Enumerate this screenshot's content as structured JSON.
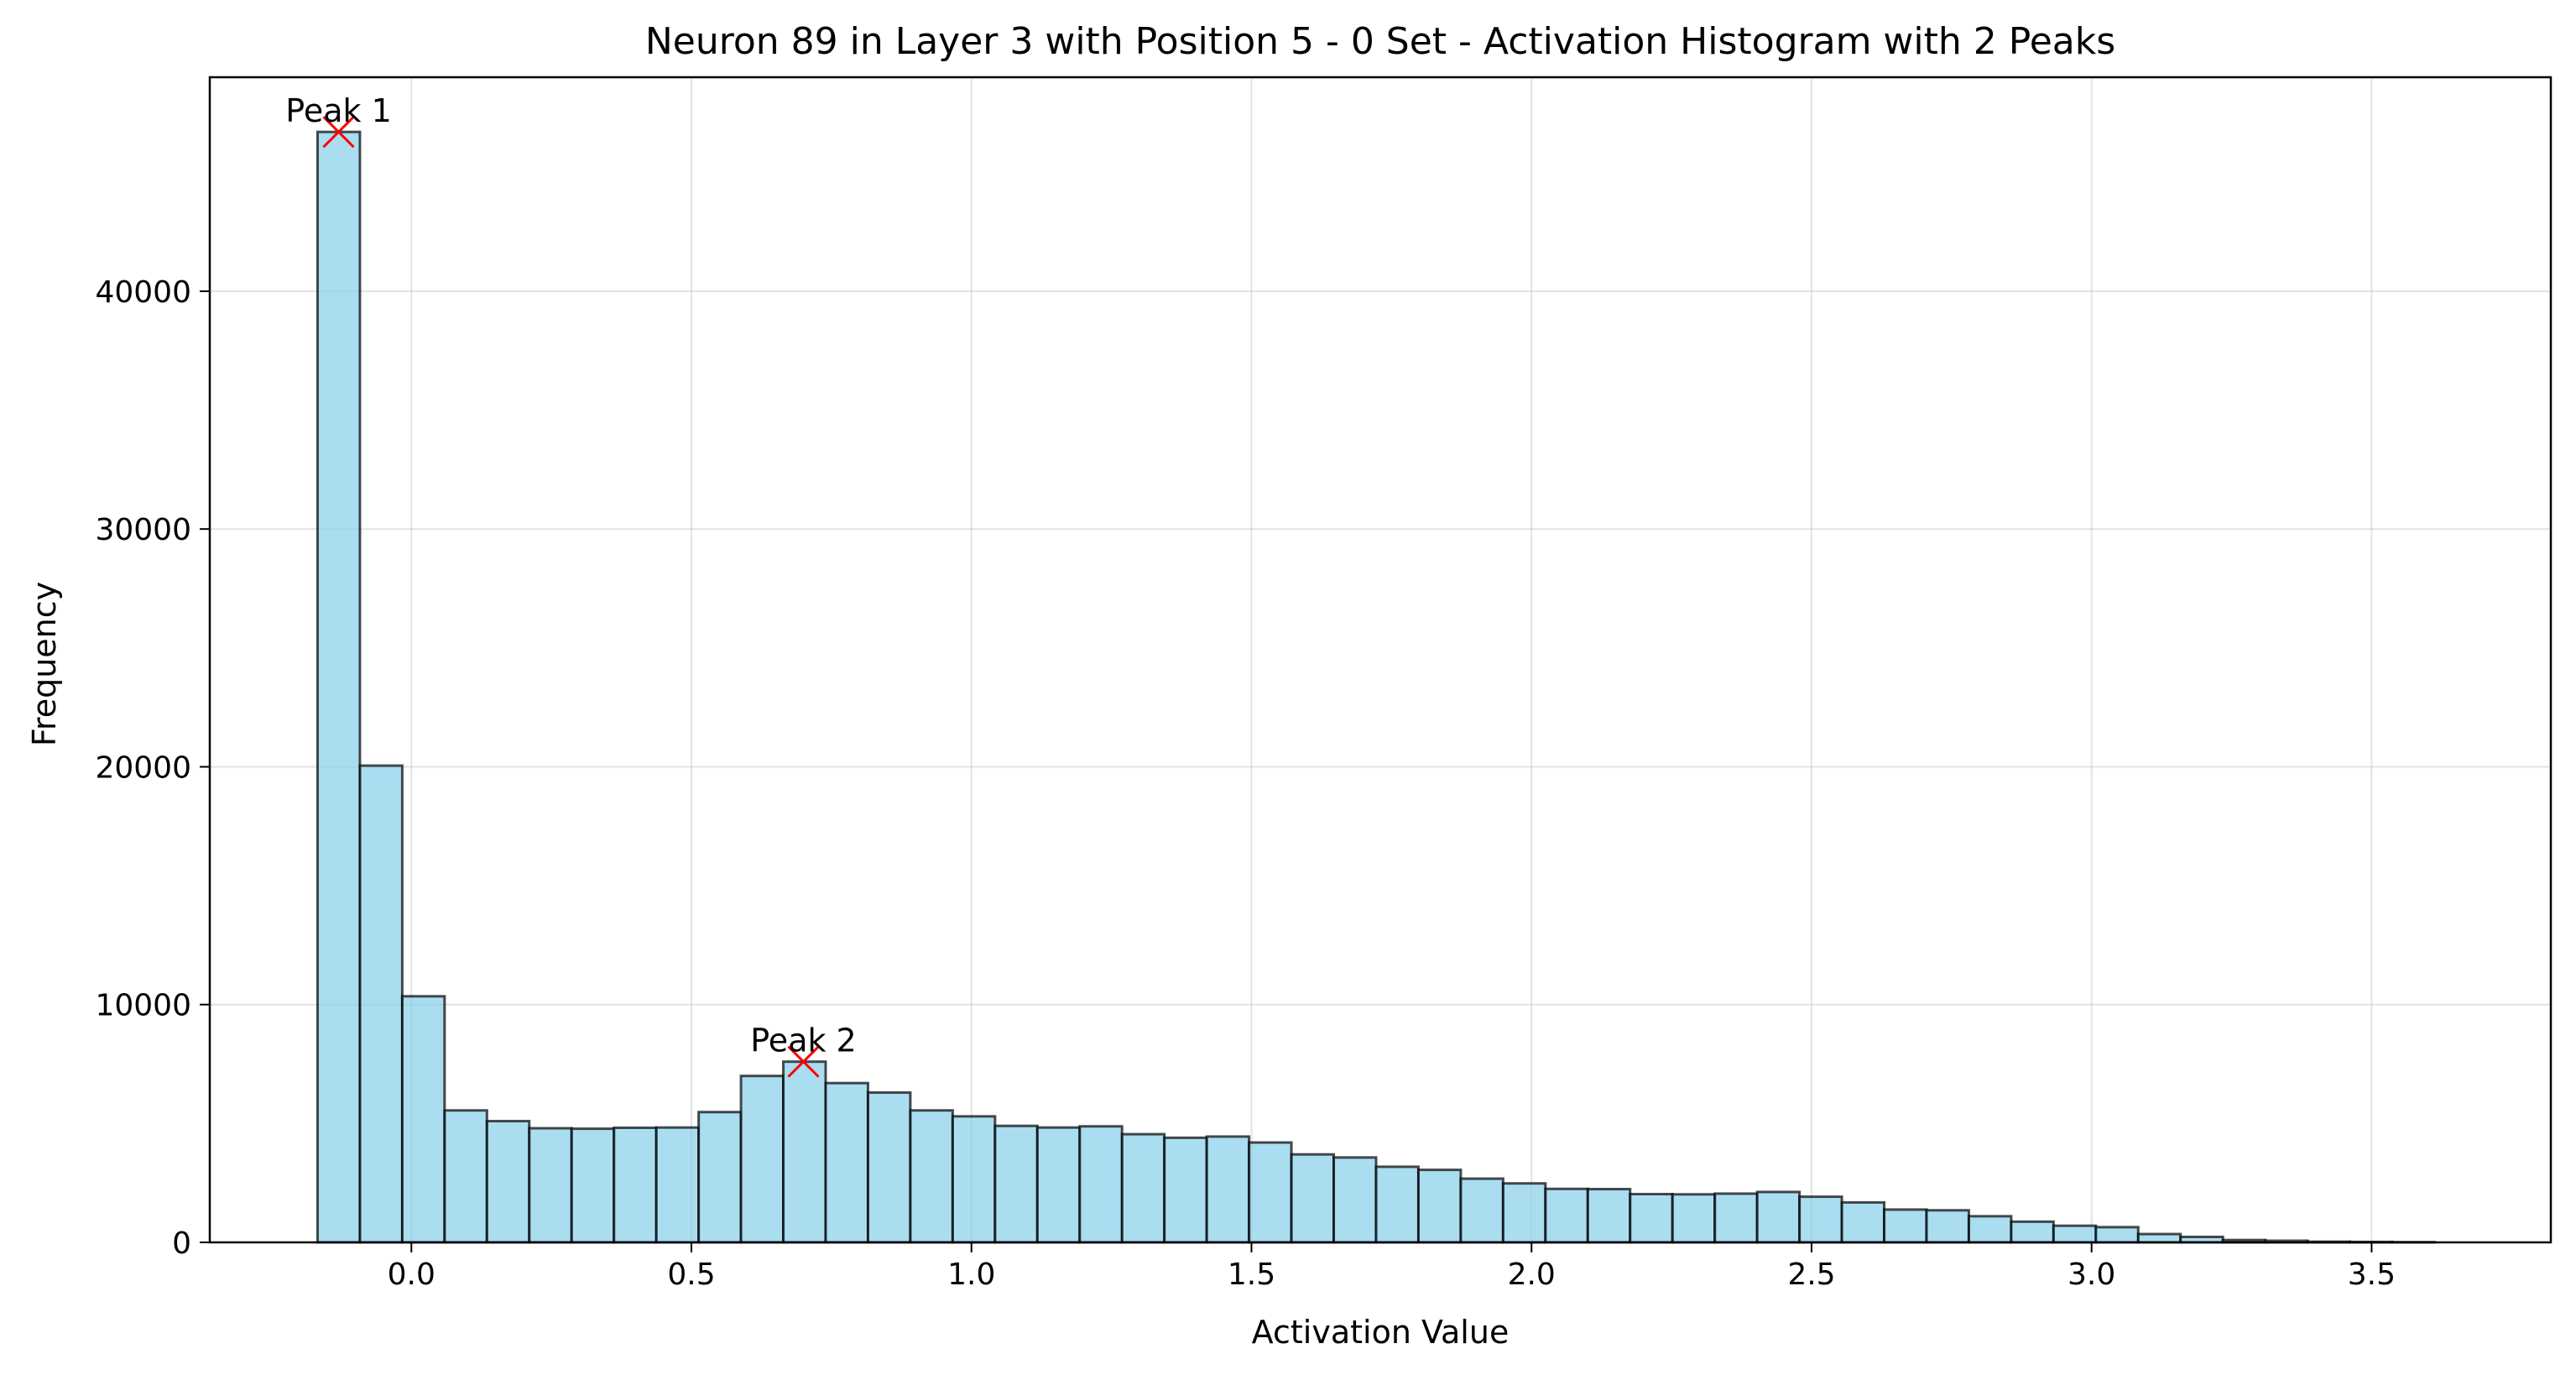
{
  "chart_data": {
    "type": "bar",
    "title": "Neuron 89 in Layer 3 with Position 5 - 0 Set - Activation Histogram with 2 Peaks",
    "xlabel": "Activation Value",
    "ylabel": "Frequency",
    "xlim": [
      -0.36,
      3.82
    ],
    "ylim": [
      0,
      49000
    ],
    "grid": true,
    "bin_start": -0.1675,
    "bin_width": 0.0756,
    "values": [
      46700,
      20050,
      10350,
      5550,
      5100,
      4800,
      4780,
      4820,
      4830,
      5480,
      7000,
      7600,
      6700,
      6300,
      5550,
      5300,
      4900,
      4830,
      4880,
      4550,
      4400,
      4450,
      4200,
      3700,
      3570,
      3180,
      3050,
      2680,
      2480,
      2250,
      2240,
      2030,
      2020,
      2050,
      2120,
      1920,
      1680,
      1380,
      1350,
      1100,
      870,
      700,
      640,
      350,
      230,
      100,
      70,
      30,
      20,
      10
    ],
    "x_ticks": [
      0.0,
      0.5,
      1.0,
      1.5,
      2.0,
      2.5,
      3.0,
      3.5
    ],
    "x_tick_labels": [
      "0.0",
      "0.5",
      "1.0",
      "1.5",
      "2.0",
      "2.5",
      "3.0",
      "3.5"
    ],
    "y_ticks": [
      0,
      10000,
      20000,
      30000,
      40000
    ],
    "y_tick_labels": [
      "0",
      "10000",
      "20000",
      "30000",
      "40000"
    ],
    "peaks": [
      {
        "label": "Peak 1",
        "x": -0.13,
        "y": 46700
      },
      {
        "label": "Peak 2",
        "x": 0.7,
        "y": 7600
      }
    ],
    "colors": {
      "bar": "#87ceeb",
      "edge": "#000000",
      "marker": "#ff0000"
    }
  }
}
